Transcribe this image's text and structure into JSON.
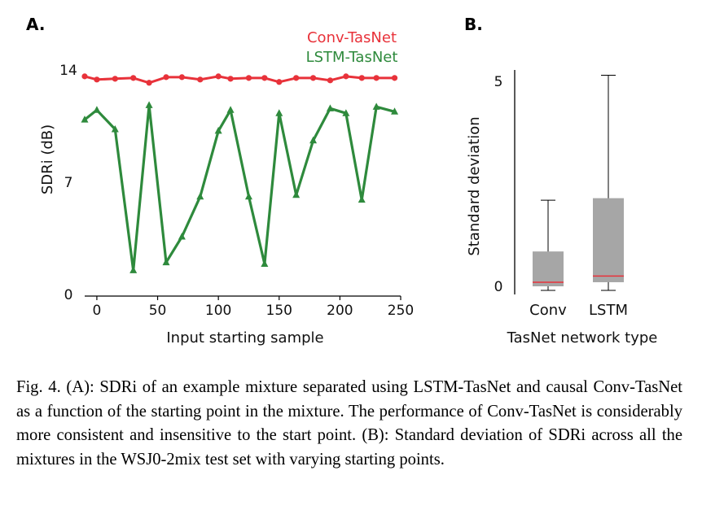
{
  "caption": "Fig. 4.  (A): SDRi of an example mixture separated using LSTM-TasNet and causal Conv-TasNet as a function of the starting point in the mixture. The performance of Conv-TasNet is considerably more consistent and insensitive to the start point. (B): Standard deviation of SDRi across all the mixtures in the WSJ0-2mix test set with varying starting points.",
  "colors": {
    "conv": "#e8323a",
    "lstm": "#2e8a3c",
    "box": "#a6a6a6",
    "median": "#e8323a"
  },
  "chart_data": [
    {
      "panel": "A.",
      "type": "line",
      "xlabel": "Input starting sample",
      "ylabel": "SDRi (dB)",
      "xlim": [
        -10,
        250
      ],
      "ylim": [
        0,
        14
      ],
      "xticks": [
        0,
        50,
        100,
        150,
        200,
        250
      ],
      "yticks": [
        0,
        7,
        14
      ],
      "legend_position": "top-right",
      "x": [
        -10,
        0,
        15,
        30,
        43,
        57,
        70,
        85,
        100,
        110,
        125,
        138,
        150,
        164,
        178,
        192,
        205,
        218,
        230,
        245
      ],
      "series": [
        {
          "name": "Conv-TasNet",
          "marker": "circle",
          "values": [
            13.6,
            13.4,
            13.45,
            13.5,
            13.2,
            13.55,
            13.55,
            13.4,
            13.6,
            13.45,
            13.5,
            13.5,
            13.25,
            13.5,
            13.5,
            13.35,
            13.6,
            13.5,
            13.5,
            13.5
          ]
        },
        {
          "name": "LSTM-TasNet",
          "marker": "triangle",
          "values": [
            10.9,
            11.5,
            10.3,
            1.5,
            11.8,
            2.0,
            3.6,
            6.1,
            10.2,
            11.5,
            6.1,
            1.9,
            11.3,
            6.2,
            9.6,
            11.6,
            11.3,
            5.9,
            11.7,
            11.4
          ]
        }
      ]
    },
    {
      "panel": "B.",
      "type": "box",
      "xlabel": "TasNet network type",
      "ylabel": "Standard deviation",
      "ylim": [
        -0.2,
        5.2
      ],
      "yticks": [
        0,
        5
      ],
      "categories": [
        "Conv",
        "LSTM"
      ],
      "boxes": [
        {
          "min": -0.1,
          "q1": 0.0,
          "median": 0.1,
          "q3": 0.85,
          "max": 2.1
        },
        {
          "min": -0.1,
          "q1": 0.1,
          "median": 0.25,
          "q3": 2.15,
          "max": 5.15
        }
      ]
    }
  ]
}
